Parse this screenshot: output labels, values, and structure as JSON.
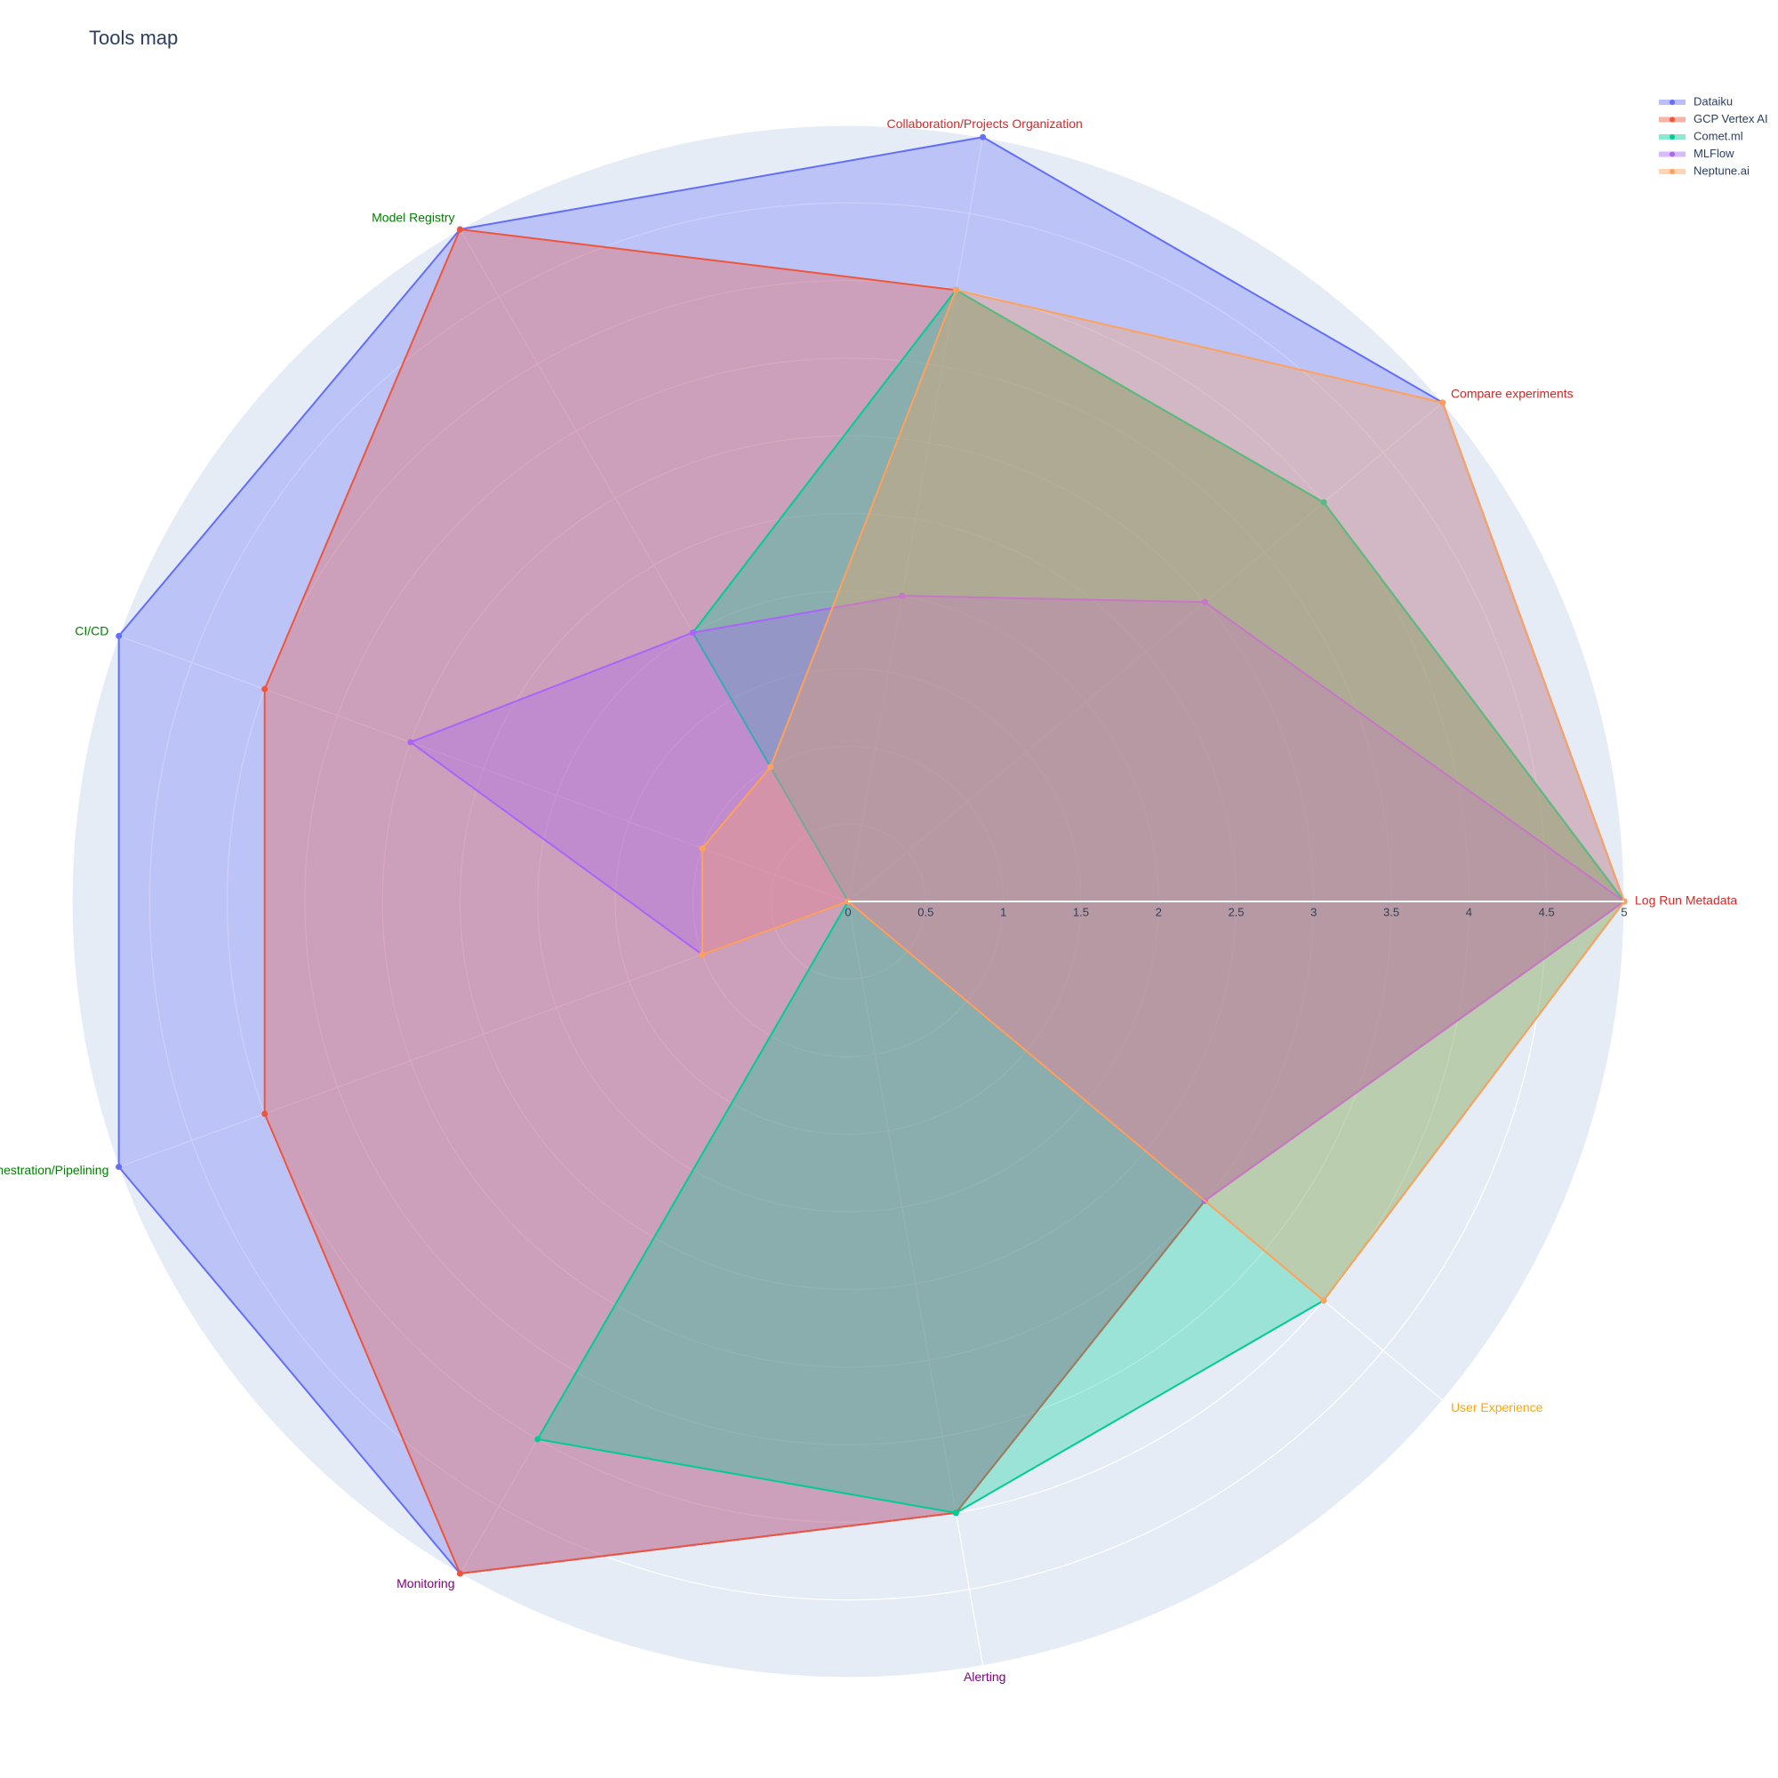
{
  "chart_data": {
    "type": "radar",
    "title": "Tools map",
    "categories": [
      "Log Run Metadata",
      "Compare experiments",
      "Collaboration/Projects Organization",
      "Model Registry",
      "CI/CD",
      "Orchestration/Pipelining",
      "Monitoring",
      "Alerting",
      "User Experience"
    ],
    "category_colors": [
      "#d62728",
      "#d62728",
      "#d62728",
      "green",
      "green",
      "green",
      "purple",
      "purple",
      "orange"
    ],
    "series": [
      {
        "name": "Dataiku",
        "color": "#636efa",
        "values": [
          5,
          5,
          5,
          5,
          5,
          5,
          5,
          4,
          3
        ]
      },
      {
        "name": "GCP Vertex AI",
        "color": "#ef553b",
        "values": [
          5,
          4,
          4,
          5,
          4,
          4,
          5,
          4,
          3
        ]
      },
      {
        "name": "Comet.ml",
        "color": "#00cc96",
        "values": [
          5,
          4,
          4,
          2,
          0,
          0,
          4,
          4,
          4
        ]
      },
      {
        "name": "MLFlow",
        "color": "#ab63fa",
        "values": [
          5,
          3,
          2,
          2,
          3,
          1,
          0,
          0,
          3
        ]
      },
      {
        "name": "Neptune.ai",
        "color": "#ffa15a",
        "values": [
          5,
          5,
          4,
          1,
          1,
          1,
          0,
          0,
          4
        ]
      }
    ],
    "rlim": [
      0,
      5
    ],
    "rticks": [
      0,
      0.5,
      1,
      1.5,
      2,
      2.5,
      3,
      3.5,
      4,
      4.5,
      5
    ],
    "grid": true
  }
}
